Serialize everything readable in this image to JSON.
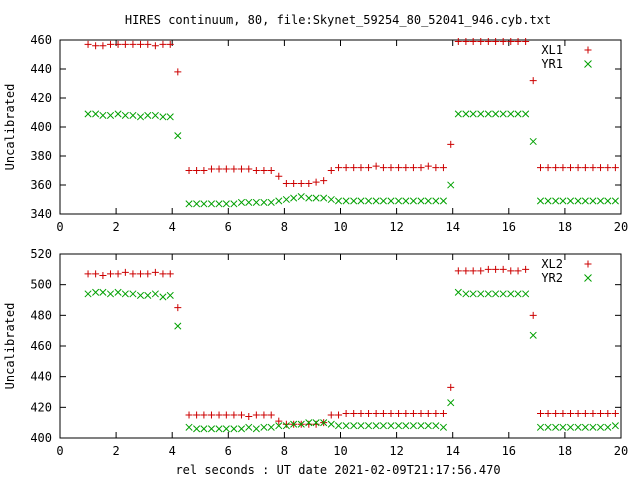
{
  "chart_data": {
    "type": "scatter",
    "title": "HIRES continuum, 80, file:Skynet_59254_80_52041_946.cyb.txt",
    "xlabel": "rel seconds : UT date 2021-02-09T21:17:56.470",
    "colors": {
      "plus": "#cc0000",
      "cross": "#00a000"
    },
    "panels": [
      {
        "id": "top",
        "ylabel": "Uncalibrated",
        "xlim": [
          0,
          20
        ],
        "ylim": [
          340,
          460
        ],
        "xticks": [
          "0",
          "2",
          "4",
          "6",
          "8",
          "10",
          "12",
          "14",
          "16",
          "18",
          "20"
        ],
        "yticks": [
          "340",
          "360",
          "380",
          "400",
          "420",
          "440",
          "460"
        ],
        "legend_position": "top-right",
        "series": [
          {
            "name": "XL1",
            "marker": "plus",
            "x": [
              1.0,
              1.27,
              1.53,
              1.8,
              2.07,
              2.33,
              2.6,
              2.87,
              3.13,
              3.4,
              3.67,
              3.93,
              4.2,
              4.6,
              4.87,
              5.13,
              5.4,
              5.67,
              5.93,
              6.2,
              6.47,
              6.73,
              7.0,
              7.27,
              7.53,
              7.8,
              8.07,
              8.33,
              8.6,
              8.87,
              9.13,
              9.4,
              9.67,
              9.93,
              10.2,
              10.47,
              10.73,
              11.0,
              11.27,
              11.53,
              11.8,
              12.07,
              12.33,
              12.6,
              12.87,
              13.13,
              13.4,
              13.67,
              13.93,
              14.2,
              14.47,
              14.73,
              15.0,
              15.27,
              15.53,
              15.8,
              16.07,
              16.33,
              16.6,
              16.87,
              17.13,
              17.4,
              17.67,
              17.93,
              18.2,
              18.47,
              18.73,
              19.0,
              19.27,
              19.53,
              19.8
            ],
            "y": [
              457,
              456,
              456,
              457,
              457,
              457,
              457,
              457,
              457,
              456,
              457,
              457,
              438,
              370,
              370,
              370,
              371,
              371,
              371,
              371,
              371,
              371,
              370,
              370,
              370,
              366,
              361,
              361,
              361,
              361,
              362,
              363,
              370,
              372,
              372,
              372,
              372,
              372,
              373,
              372,
              372,
              372,
              372,
              372,
              372,
              373,
              372,
              372,
              388,
              459,
              459,
              459,
              459,
              459,
              459,
              459,
              459,
              459,
              459,
              432,
              372,
              372,
              372,
              372,
              372,
              372,
              372,
              372,
              372,
              372,
              372
            ]
          },
          {
            "name": "YR1",
            "marker": "cross",
            "x": [
              1.0,
              1.27,
              1.53,
              1.8,
              2.07,
              2.33,
              2.6,
              2.87,
              3.13,
              3.4,
              3.67,
              3.93,
              4.2,
              4.6,
              4.87,
              5.13,
              5.4,
              5.67,
              5.93,
              6.2,
              6.47,
              6.73,
              7.0,
              7.27,
              7.53,
              7.8,
              8.07,
              8.33,
              8.6,
              8.87,
              9.13,
              9.4,
              9.67,
              9.93,
              10.2,
              10.47,
              10.73,
              11.0,
              11.27,
              11.53,
              11.8,
              12.07,
              12.33,
              12.6,
              12.87,
              13.13,
              13.4,
              13.67,
              13.93,
              14.2,
              14.47,
              14.73,
              15.0,
              15.27,
              15.53,
              15.8,
              16.07,
              16.33,
              16.6,
              16.87,
              17.13,
              17.4,
              17.67,
              17.93,
              18.2,
              18.47,
              18.73,
              19.0,
              19.27,
              19.53,
              19.8
            ],
            "y": [
              409,
              409,
              408,
              408,
              409,
              408,
              408,
              407,
              408,
              408,
              407,
              407,
              394,
              347,
              347,
              347,
              347,
              347,
              347,
              347,
              348,
              348,
              348,
              348,
              348,
              349,
              350,
              351,
              352,
              351,
              351,
              351,
              350,
              349,
              349,
              349,
              349,
              349,
              349,
              349,
              349,
              349,
              349,
              349,
              349,
              349,
              349,
              349,
              360,
              409,
              409,
              409,
              409,
              409,
              409,
              409,
              409,
              409,
              409,
              390,
              349,
              349,
              349,
              349,
              349,
              349,
              349,
              349,
              349,
              349,
              349
            ]
          }
        ]
      },
      {
        "id": "bottom",
        "ylabel": "Uncalibrated",
        "xlim": [
          0,
          20
        ],
        "ylim": [
          400,
          520
        ],
        "xticks": [
          "0",
          "2",
          "4",
          "6",
          "8",
          "10",
          "12",
          "14",
          "16",
          "18",
          "20"
        ],
        "yticks": [
          "400",
          "420",
          "440",
          "460",
          "480",
          "500",
          "520"
        ],
        "legend_position": "top-right",
        "series": [
          {
            "name": "XL2",
            "marker": "plus",
            "x": [
              1.0,
              1.27,
              1.53,
              1.8,
              2.07,
              2.33,
              2.6,
              2.87,
              3.13,
              3.4,
              3.67,
              3.93,
              4.2,
              4.6,
              4.87,
              5.13,
              5.4,
              5.67,
              5.93,
              6.2,
              6.47,
              6.73,
              7.0,
              7.27,
              7.53,
              7.8,
              8.07,
              8.33,
              8.6,
              8.87,
              9.13,
              9.4,
              9.67,
              9.93,
              10.2,
              10.47,
              10.73,
              11.0,
              11.27,
              11.53,
              11.8,
              12.07,
              12.33,
              12.6,
              12.87,
              13.13,
              13.4,
              13.67,
              13.93,
              14.2,
              14.47,
              14.73,
              15.0,
              15.27,
              15.53,
              15.8,
              16.07,
              16.33,
              16.6,
              16.87,
              17.13,
              17.4,
              17.67,
              17.93,
              18.2,
              18.47,
              18.73,
              19.0,
              19.27,
              19.53,
              19.8
            ],
            "y": [
              507,
              507,
              506,
              507,
              507,
              508,
              507,
              507,
              507,
              508,
              507,
              507,
              485,
              415,
              415,
              415,
              415,
              415,
              415,
              415,
              415,
              414,
              415,
              415,
              415,
              411,
              409,
              409,
              409,
              409,
              409,
              410,
              415,
              415,
              416,
              416,
              416,
              416,
              416,
              416,
              416,
              416,
              416,
              416,
              416,
              416,
              416,
              416,
              433,
              509,
              509,
              509,
              509,
              510,
              510,
              510,
              509,
              509,
              510,
              480,
              416,
              416,
              416,
              416,
              416,
              416,
              416,
              416,
              416,
              416,
              416
            ]
          },
          {
            "name": "YR2",
            "marker": "cross",
            "x": [
              1.0,
              1.27,
              1.53,
              1.8,
              2.07,
              2.33,
              2.6,
              2.87,
              3.13,
              3.4,
              3.67,
              3.93,
              4.2,
              4.6,
              4.87,
              5.13,
              5.4,
              5.67,
              5.93,
              6.2,
              6.47,
              6.73,
              7.0,
              7.27,
              7.53,
              7.8,
              8.07,
              8.33,
              8.6,
              8.87,
              9.13,
              9.4,
              9.67,
              9.93,
              10.2,
              10.47,
              10.73,
              11.0,
              11.27,
              11.53,
              11.8,
              12.07,
              12.33,
              12.6,
              12.87,
              13.13,
              13.4,
              13.67,
              13.93,
              14.2,
              14.47,
              14.73,
              15.0,
              15.27,
              15.53,
              15.8,
              16.07,
              16.33,
              16.6,
              16.87,
              17.13,
              17.4,
              17.67,
              17.93,
              18.2,
              18.47,
              18.73,
              19.0,
              19.27,
              19.53,
              19.8
            ],
            "y": [
              494,
              495,
              495,
              494,
              495,
              494,
              494,
              493,
              493,
              494,
              492,
              493,
              473,
              407,
              406,
              406,
              406,
              406,
              406,
              406,
              406,
              407,
              406,
              407,
              407,
              408,
              408,
              409,
              409,
              410,
              410,
              410,
              409,
              408,
              408,
              408,
              408,
              408,
              408,
              408,
              408,
              408,
              408,
              408,
              408,
              408,
              408,
              407,
              423,
              495,
              494,
              494,
              494,
              494,
              494,
              494,
              494,
              494,
              494,
              467,
              407,
              407,
              407,
              407,
              407,
              407,
              407,
              407,
              407,
              407,
              408
            ]
          }
        ]
      }
    ]
  }
}
